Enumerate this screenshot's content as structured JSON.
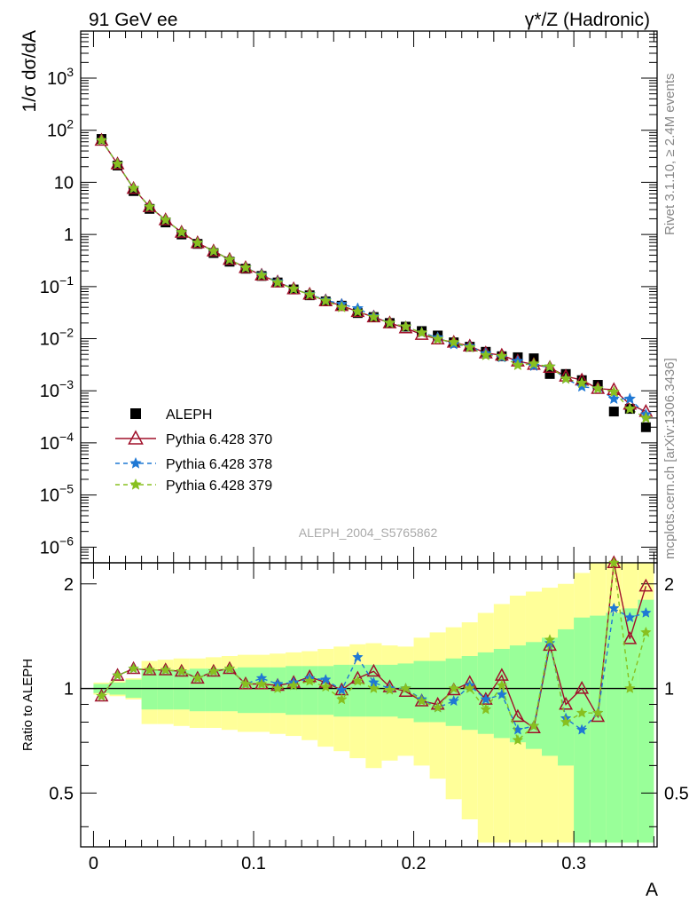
{
  "header": {
    "left": "91 GeV ee",
    "right": "γ*/Z (Hadronic)"
  },
  "side_text": {
    "rivet": "Rivet 3.1.10, ≥ 2.4M events",
    "mcplots": "mcplots.cern.ch [arXiv:1306.3436]"
  },
  "watermark": "ALEPH_2004_S5765862",
  "chart_data": [
    {
      "type": "line",
      "panel": "main",
      "ylabel": "1/σ dσ/dA",
      "yscale": "log",
      "ylim": [
        5e-07,
        8000
      ],
      "xlim": [
        -0.008,
        0.352
      ],
      "ytick_labels": [
        "10^3",
        "10^2",
        "10",
        "1",
        "10^-1",
        "10^-2",
        "10^-3",
        "10^-4",
        "10^-5",
        "10^-6"
      ],
      "x": [
        0.005,
        0.015,
        0.025,
        0.035,
        0.045,
        0.055,
        0.065,
        0.075,
        0.085,
        0.095,
        0.105,
        0.115,
        0.125,
        0.135,
        0.145,
        0.155,
        0.165,
        0.175,
        0.185,
        0.195,
        0.205,
        0.215,
        0.225,
        0.235,
        0.245,
        0.255,
        0.265,
        0.275,
        0.285,
        0.295,
        0.305,
        0.315,
        0.325,
        0.335,
        0.345
      ],
      "legend": [
        "ALEPH",
        "Pythia 6.428 370",
        "Pythia 6.428 378",
        "Pythia 6.428 379"
      ],
      "series": [
        {
          "name": "ALEPH",
          "color": "#000000",
          "marker": "square",
          "values": [
            68,
            21,
            6.8,
            3.1,
            1.7,
            1.0,
            0.66,
            0.44,
            0.3,
            0.22,
            0.16,
            0.12,
            0.088,
            0.068,
            0.052,
            0.043,
            0.031,
            0.026,
            0.02,
            0.017,
            0.014,
            0.0115,
            0.0085,
            0.007,
            0.0056,
            0.0046,
            0.0044,
            0.0042,
            0.0021,
            0.0021,
            0.0016,
            0.0013,
            0.0004,
            0.00045,
            0.0002
          ]
        },
        {
          "name": "Pythia 6.428 370",
          "color": "#a0102a",
          "marker": "triangle",
          "values": [
            64,
            22.5,
            7.6,
            3.4,
            1.9,
            1.1,
            0.69,
            0.48,
            0.33,
            0.23,
            0.165,
            0.122,
            0.09,
            0.071,
            0.053,
            0.043,
            0.033,
            0.026,
            0.02,
            0.016,
            0.012,
            0.0098,
            0.0085,
            0.0072,
            0.0053,
            0.0048,
            0.0037,
            0.0032,
            0.0028,
            0.0019,
            0.0016,
            0.0011,
            0.00105,
            0.00055,
            0.0004
          ]
        },
        {
          "name": "Pythia 6.428 378",
          "color": "#1f78d4",
          "marker": "star",
          "values": [
            64,
            22.5,
            7.7,
            3.4,
            1.9,
            1.1,
            0.69,
            0.48,
            0.33,
            0.23,
            0.17,
            0.124,
            0.09,
            0.071,
            0.055,
            0.046,
            0.038,
            0.027,
            0.02,
            0.017,
            0.013,
            0.0105,
            0.0078,
            0.0071,
            0.0052,
            0.0044,
            0.0037,
            0.003,
            0.0029,
            0.0017,
            0.0012,
            0.0011,
            0.0007,
            0.0007,
            0.00035
          ]
        },
        {
          "name": "Pythia 6.428 379",
          "color": "#88c020",
          "marker": "star",
          "values": [
            64,
            22.5,
            7.7,
            3.4,
            1.9,
            1.1,
            0.69,
            0.48,
            0.33,
            0.23,
            0.165,
            0.12,
            0.09,
            0.07,
            0.053,
            0.04,
            0.033,
            0.026,
            0.02,
            0.017,
            0.013,
            0.0098,
            0.0085,
            0.0068,
            0.0048,
            0.0046,
            0.0031,
            0.0033,
            0.0029,
            0.0017,
            0.0014,
            0.0011,
            0.00095,
            0.00045,
            0.0003
          ]
        }
      ]
    },
    {
      "type": "line",
      "panel": "ratio",
      "ylabel": "Ratio to ALEPH",
      "xlabel": "A",
      "yscale": "log",
      "ylim": [
        0.35,
        2.3
      ],
      "xlim": [
        -0.008,
        0.352
      ],
      "xtick_labels": [
        "0",
        "0.1",
        "0.2",
        "0.3"
      ],
      "ytick_labels": [
        "0.5",
        "1",
        "2"
      ],
      "x": [
        0.005,
        0.015,
        0.025,
        0.035,
        0.045,
        0.055,
        0.065,
        0.075,
        0.085,
        0.095,
        0.105,
        0.115,
        0.125,
        0.135,
        0.145,
        0.155,
        0.165,
        0.175,
        0.185,
        0.195,
        0.205,
        0.215,
        0.225,
        0.235,
        0.245,
        0.255,
        0.265,
        0.275,
        0.285,
        0.295,
        0.305,
        0.315,
        0.325,
        0.335,
        0.345
      ],
      "band_edges": [
        0.0,
        0.01,
        0.02,
        0.03,
        0.04,
        0.05,
        0.06,
        0.07,
        0.08,
        0.09,
        0.1,
        0.11,
        0.12,
        0.13,
        0.14,
        0.15,
        0.16,
        0.17,
        0.18,
        0.19,
        0.2,
        0.21,
        0.22,
        0.23,
        0.24,
        0.25,
        0.26,
        0.27,
        0.28,
        0.29,
        0.3,
        0.31,
        0.32,
        0.33,
        0.34,
        0.35
      ],
      "band_inner": [
        [
          0.97,
          1.03
        ],
        [
          0.96,
          1.04
        ],
        [
          0.94,
          1.06
        ],
        [
          0.87,
          1.13
        ],
        [
          0.87,
          1.13
        ],
        [
          0.87,
          1.13
        ],
        [
          0.86,
          1.14
        ],
        [
          0.86,
          1.14
        ],
        [
          0.86,
          1.14
        ],
        [
          0.85,
          1.15
        ],
        [
          0.85,
          1.15
        ],
        [
          0.85,
          1.15
        ],
        [
          0.84,
          1.16
        ],
        [
          0.84,
          1.16
        ],
        [
          0.84,
          1.16
        ],
        [
          0.83,
          1.17
        ],
        [
          0.83,
          1.17
        ],
        [
          0.83,
          1.17
        ],
        [
          0.83,
          1.17
        ],
        [
          0.82,
          1.18
        ],
        [
          0.8,
          1.2
        ],
        [
          0.8,
          1.2
        ],
        [
          0.78,
          1.22
        ],
        [
          0.76,
          1.24
        ],
        [
          0.74,
          1.27
        ],
        [
          0.72,
          1.3
        ],
        [
          0.7,
          1.33
        ],
        [
          0.67,
          1.36
        ],
        [
          0.64,
          1.4
        ],
        [
          0.6,
          1.48
        ],
        [
          0.36,
          1.6
        ],
        [
          0.36,
          1.62
        ],
        [
          0.36,
          1.65
        ],
        [
          0.36,
          1.7
        ],
        [
          0.36,
          1.8
        ]
      ],
      "band_outer": [
        [
          0.96,
          1.04
        ],
        [
          0.95,
          1.05
        ],
        [
          0.93,
          1.07
        ],
        [
          0.79,
          1.2
        ],
        [
          0.79,
          1.21
        ],
        [
          0.78,
          1.22
        ],
        [
          0.77,
          1.22
        ],
        [
          0.77,
          1.23
        ],
        [
          0.76,
          1.24
        ],
        [
          0.75,
          1.25
        ],
        [
          0.75,
          1.25
        ],
        [
          0.74,
          1.26
        ],
        [
          0.73,
          1.27
        ],
        [
          0.71,
          1.28
        ],
        [
          0.68,
          1.3
        ],
        [
          0.66,
          1.32
        ],
        [
          0.63,
          1.34
        ],
        [
          0.59,
          1.35
        ],
        [
          0.62,
          1.33
        ],
        [
          0.64,
          1.32
        ],
        [
          0.6,
          1.4
        ],
        [
          0.55,
          1.45
        ],
        [
          0.48,
          1.5
        ],
        [
          0.42,
          1.55
        ],
        [
          0.36,
          1.65
        ],
        [
          0.36,
          1.75
        ],
        [
          0.36,
          1.85
        ],
        [
          0.36,
          1.9
        ],
        [
          0.36,
          1.95
        ],
        [
          0.36,
          2.0
        ],
        [
          0.36,
          2.15
        ],
        [
          0.36,
          2.3
        ],
        [
          0.36,
          2.3
        ],
        [
          0.36,
          2.3
        ],
        [
          0.36,
          2.3
        ]
      ],
      "series": [
        {
          "name": "Pythia 6.428 370",
          "color": "#a0102a",
          "values": [
            0.95,
            1.09,
            1.14,
            1.13,
            1.13,
            1.12,
            1.07,
            1.12,
            1.14,
            1.03,
            1.03,
            1.02,
            1.04,
            1.08,
            1.04,
            0.99,
            1.07,
            1.12,
            1.01,
            0.98,
            0.92,
            0.9,
            0.99,
            1.04,
            0.93,
            1.09,
            0.83,
            0.77,
            1.33,
            0.9,
            1.0,
            0.83,
            2.52,
            1.39,
            1.97
          ]
        },
        {
          "name": "Pythia 6.428 378",
          "color": "#1f78d4",
          "values": [
            0.95,
            1.09,
            1.14,
            1.13,
            1.13,
            1.12,
            1.07,
            1.12,
            1.14,
            1.03,
            1.07,
            1.03,
            1.04,
            1.07,
            1.06,
            0.99,
            1.23,
            1.04,
            1.0,
            1.0,
            0.93,
            0.88,
            0.92,
            1.02,
            0.93,
            0.96,
            0.76,
            0.78,
            1.35,
            0.82,
            0.76,
            0.85,
            1.7,
            1.6,
            1.65
          ]
        },
        {
          "name": "Pythia 6.428 379",
          "color": "#88c020",
          "values": [
            0.95,
            1.09,
            1.14,
            1.13,
            1.13,
            1.12,
            1.07,
            1.12,
            1.14,
            1.03,
            1.03,
            1.0,
            1.02,
            1.05,
            1.01,
            0.93,
            1.05,
            1.0,
            0.99,
            1.0,
            0.92,
            0.88,
            1.0,
            1.0,
            0.87,
            1.02,
            0.71,
            0.78,
            1.38,
            0.8,
            0.85,
            0.85,
            2.37,
            1.0,
            1.45
          ]
        }
      ]
    }
  ]
}
